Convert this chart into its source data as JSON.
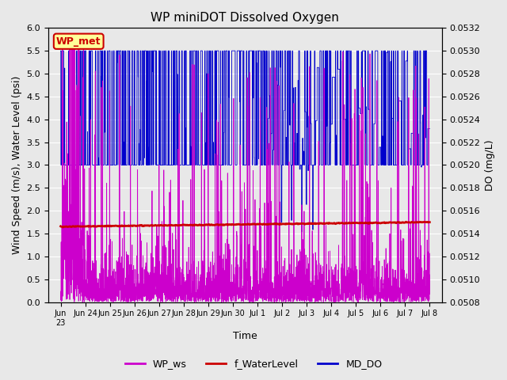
{
  "title": "WP miniDOT Dissolved Oxygen",
  "xlabel": "Time",
  "ylabel_left": "Wind Speed (m/s), Water Level (psi)",
  "ylabel_right": "DO (mg/L)",
  "ylim_left": [
    0.0,
    6.0
  ],
  "ylim_right": [
    0.0508,
    0.0532
  ],
  "background_color": "#e8e8e8",
  "plot_bg_color": "#e8e8e8",
  "fig_bg_color": "#e8e8e8",
  "legend_label": "WP_met",
  "legend_box_color": "#ffff99",
  "legend_box_edge": "#cc0000",
  "wp_ws_color": "#cc00cc",
  "f_water_color": "#cc0000",
  "md_do_color": "#0000cc",
  "num_days": 16,
  "xtick_positions": [
    1,
    2,
    3,
    4,
    5,
    6,
    7,
    8,
    9,
    10,
    11,
    12,
    13,
    14,
    15,
    16
  ],
  "xtick_labels": [
    "Jun 23",
    "Jun 24",
    "Jun 25",
    "Jun 26",
    "Jun 27",
    "Jun 28",
    "Jun 29",
    "Jun 30",
    "Jul 1",
    "Jul 2",
    "Jul 3",
    "Jul 4",
    "Jul 5",
    "Jul 6",
    "Jul 7",
    "Jul 8"
  ],
  "xtick_first": "Jun\n23",
  "yticks_left": [
    0.0,
    0.5,
    1.0,
    1.5,
    2.0,
    2.5,
    3.0,
    3.5,
    4.0,
    4.5,
    5.0,
    5.5,
    6.0
  ],
  "yticks_right": [
    0.0508,
    0.051,
    0.0512,
    0.0514,
    0.0516,
    0.0518,
    0.052,
    0.0522,
    0.0524,
    0.0526,
    0.0528,
    0.053,
    0.0532
  ],
  "title_fontsize": 11,
  "axis_fontsize": 8,
  "label_fontsize": 9,
  "legend_fontsize": 9
}
